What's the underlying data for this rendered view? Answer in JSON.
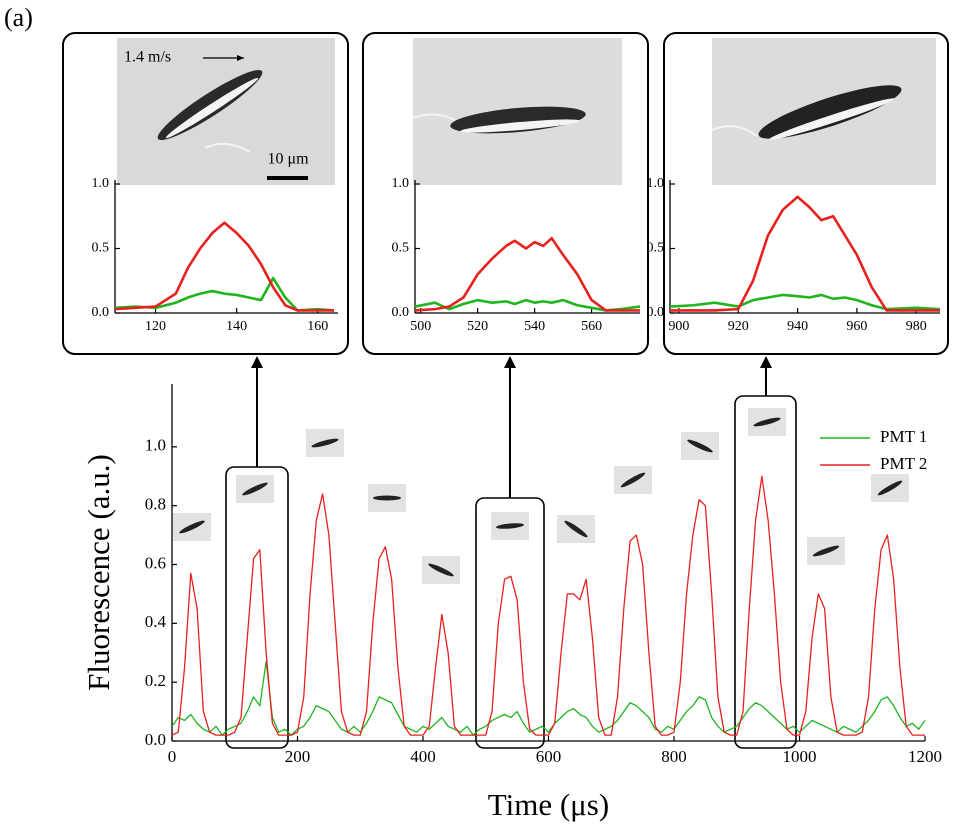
{
  "chart_data": [
    {
      "type": "line",
      "panel_label": "(a)",
      "xlabel": "Time (μs)",
      "ylabel": "Fluorescence (a.u.)",
      "x": [
        0,
        10,
        20,
        30,
        40,
        50,
        60,
        70,
        80,
        90,
        100,
        110,
        120,
        130,
        140,
        150,
        160,
        170,
        180,
        190,
        200,
        210,
        220,
        230,
        240,
        250,
        260,
        270,
        280,
        290,
        300,
        310,
        320,
        330,
        340,
        350,
        360,
        370,
        380,
        390,
        400,
        410,
        420,
        430,
        440,
        450,
        460,
        470,
        480,
        490,
        500,
        510,
        520,
        530,
        540,
        550,
        560,
        570,
        580,
        590,
        600,
        610,
        620,
        630,
        640,
        650,
        660,
        670,
        680,
        690,
        700,
        710,
        720,
        730,
        740,
        750,
        760,
        770,
        780,
        790,
        800,
        810,
        820,
        830,
        840,
        850,
        860,
        870,
        880,
        890,
        900,
        910,
        920,
        930,
        940,
        950,
        960,
        970,
        980,
        990,
        1000,
        1010,
        1020,
        1030,
        1040,
        1050,
        1060,
        1070,
        1080,
        1090,
        1100,
        1110,
        1120,
        1130,
        1140,
        1150,
        1160,
        1170,
        1180,
        1190,
        1200
      ],
      "series": [
        {
          "name": "PMT 1",
          "color": "#1fb51f",
          "values": [
            0.05,
            0.08,
            0.07,
            0.09,
            0.06,
            0.04,
            0.03,
            0.05,
            0.02,
            0.04,
            0.05,
            0.06,
            0.1,
            0.15,
            0.12,
            0.27,
            0.08,
            0.03,
            0.04,
            0.02,
            0.04,
            0.05,
            0.08,
            0.12,
            0.11,
            0.1,
            0.07,
            0.04,
            0.03,
            0.05,
            0.03,
            0.06,
            0.1,
            0.15,
            0.14,
            0.13,
            0.09,
            0.05,
            0.04,
            0.03,
            0.05,
            0.04,
            0.06,
            0.08,
            0.05,
            0.04,
            0.03,
            0.05,
            0.02,
            0.04,
            0.05,
            0.07,
            0.08,
            0.09,
            0.08,
            0.1,
            0.06,
            0.03,
            0.04,
            0.05,
            0.03,
            0.06,
            0.08,
            0.1,
            0.11,
            0.09,
            0.08,
            0.05,
            0.03,
            0.04,
            0.05,
            0.07,
            0.1,
            0.13,
            0.12,
            0.1,
            0.08,
            0.04,
            0.03,
            0.05,
            0.04,
            0.07,
            0.1,
            0.12,
            0.15,
            0.14,
            0.08,
            0.05,
            0.03,
            0.04,
            0.05,
            0.08,
            0.11,
            0.13,
            0.12,
            0.1,
            0.08,
            0.06,
            0.04,
            0.05,
            0.03,
            0.05,
            0.07,
            0.06,
            0.05,
            0.04,
            0.03,
            0.05,
            0.04,
            0.03,
            0.05,
            0.07,
            0.1,
            0.14,
            0.15,
            0.12,
            0.08,
            0.05,
            0.06,
            0.04,
            0.07
          ]
        },
        {
          "name": "PMT 2",
          "color": "#e8201e",
          "values": [
            0.02,
            0.03,
            0.25,
            0.57,
            0.45,
            0.1,
            0.03,
            0.02,
            0.02,
            0.02,
            0.03,
            0.08,
            0.35,
            0.62,
            0.65,
            0.3,
            0.06,
            0.02,
            0.02,
            0.02,
            0.03,
            0.15,
            0.5,
            0.75,
            0.84,
            0.7,
            0.4,
            0.1,
            0.03,
            0.02,
            0.02,
            0.1,
            0.4,
            0.62,
            0.66,
            0.55,
            0.25,
            0.05,
            0.02,
            0.02,
            0.02,
            0.05,
            0.25,
            0.43,
            0.3,
            0.05,
            0.02,
            0.02,
            0.02,
            0.02,
            0.02,
            0.1,
            0.4,
            0.55,
            0.56,
            0.48,
            0.2,
            0.04,
            0.02,
            0.02,
            0.02,
            0.06,
            0.3,
            0.5,
            0.5,
            0.48,
            0.55,
            0.35,
            0.08,
            0.02,
            0.02,
            0.15,
            0.45,
            0.68,
            0.7,
            0.6,
            0.3,
            0.05,
            0.02,
            0.02,
            0.03,
            0.2,
            0.5,
            0.7,
            0.82,
            0.8,
            0.5,
            0.15,
            0.03,
            0.02,
            0.02,
            0.1,
            0.45,
            0.75,
            0.9,
            0.75,
            0.5,
            0.2,
            0.04,
            0.02,
            0.02,
            0.1,
            0.35,
            0.5,
            0.45,
            0.15,
            0.03,
            0.02,
            0.02,
            0.02,
            0.03,
            0.15,
            0.45,
            0.65,
            0.7,
            0.55,
            0.25,
            0.05,
            0.02,
            0.02,
            0.02
          ]
        }
      ],
      "xlim": [
        0,
        1200
      ],
      "xticks": [
        0,
        200,
        400,
        600,
        800,
        1000,
        1200
      ],
      "ylim": [
        0,
        1.2
      ],
      "yticks": [
        {
          "value": 0,
          "label": "0.0"
        },
        0.2,
        0.4,
        0.6,
        0.8,
        {
          "value": 1,
          "label": "1.0"
        }
      ],
      "legend": "upper right"
    },
    {
      "type": "line",
      "annotations": [
        "1.4 m/s",
        "10 μm"
      ],
      "x": [
        110,
        115,
        120,
        125,
        128,
        131,
        134,
        137,
        140,
        143,
        146,
        149,
        152,
        155,
        160,
        164
      ],
      "series": [
        {
          "name": "PMT 1",
          "color": "#1fb51f",
          "values": [
            0.04,
            0.05,
            0.04,
            0.08,
            0.12,
            0.15,
            0.17,
            0.15,
            0.14,
            0.12,
            0.1,
            0.27,
            0.12,
            0.02,
            0.03,
            0.02
          ]
        },
        {
          "name": "PMT 2",
          "color": "#e8201e",
          "values": [
            0.03,
            0.04,
            0.05,
            0.15,
            0.35,
            0.5,
            0.62,
            0.7,
            0.62,
            0.52,
            0.38,
            0.2,
            0.06,
            0.02,
            0.02,
            0.02
          ]
        }
      ],
      "xlim": [
        110,
        165
      ],
      "xticks": [
        120,
        140,
        160
      ],
      "ylim": [
        0,
        1
      ],
      "yticks": [
        {
          "value": 0,
          "label": "0.0"
        },
        0.5,
        {
          "value": 1,
          "label": "1.0"
        }
      ]
    },
    {
      "type": "line",
      "x": [
        498,
        505,
        510,
        515,
        520,
        525,
        530,
        533,
        537,
        540,
        543,
        546,
        550,
        555,
        560,
        565,
        570,
        577
      ],
      "series": [
        {
          "name": "PMT 1",
          "color": "#1fb51f",
          "values": [
            0.05,
            0.08,
            0.03,
            0.07,
            0.1,
            0.08,
            0.09,
            0.07,
            0.1,
            0.08,
            0.09,
            0.08,
            0.1,
            0.06,
            0.04,
            0.02,
            0.03,
            0.05
          ]
        },
        {
          "name": "PMT 2",
          "color": "#e8201e",
          "values": [
            0.02,
            0.03,
            0.05,
            0.12,
            0.3,
            0.42,
            0.52,
            0.56,
            0.5,
            0.55,
            0.52,
            0.58,
            0.45,
            0.3,
            0.1,
            0.02,
            0.02,
            0.02
          ]
        }
      ],
      "xlim": [
        498,
        577
      ],
      "xticks": [
        500,
        520,
        540,
        560
      ],
      "ylim": [
        0,
        1
      ],
      "yticks": [
        {
          "value": 0,
          "label": "0.0"
        },
        0.5,
        {
          "value": 1,
          "label": "1.0"
        }
      ]
    },
    {
      "type": "line",
      "x": [
        897,
        905,
        912,
        920,
        925,
        930,
        935,
        940,
        944,
        948,
        952,
        956,
        960,
        965,
        970,
        980,
        988
      ],
      "series": [
        {
          "name": "PMT 1",
          "color": "#1fb51f",
          "values": [
            0.05,
            0.06,
            0.08,
            0.05,
            0.1,
            0.12,
            0.14,
            0.13,
            0.12,
            0.14,
            0.11,
            0.12,
            0.1,
            0.06,
            0.03,
            0.04,
            0.03
          ]
        },
        {
          "name": "PMT 2",
          "color": "#e8201e",
          "values": [
            0.02,
            0.02,
            0.02,
            0.03,
            0.25,
            0.6,
            0.8,
            0.9,
            0.82,
            0.72,
            0.75,
            0.6,
            0.45,
            0.2,
            0.02,
            0.02,
            0.02
          ]
        }
      ],
      "xlim": [
        897,
        988
      ],
      "xticks": [
        900,
        920,
        940,
        960,
        980
      ],
      "ylim": [
        0,
        1
      ],
      "yticks": [
        {
          "value": 0,
          "label": "0.0"
        },
        0.5,
        {
          "value": 1,
          "label": "1.0"
        }
      ]
    }
  ]
}
